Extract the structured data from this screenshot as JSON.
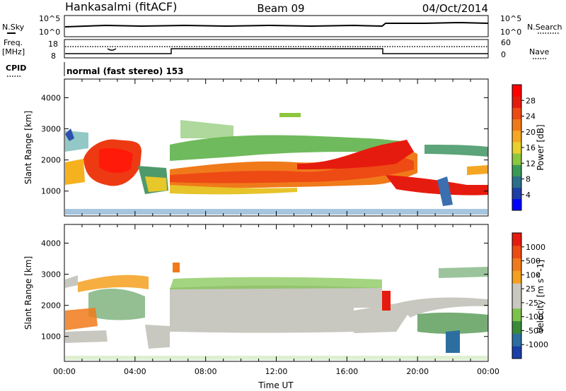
{
  "header": {
    "station": "Hankasalmi (fitACF)",
    "beam": "Beam 09",
    "date": "04/Oct/2014"
  },
  "strip_nsky": {
    "left_label": "N.Sky",
    "left_ticks": [
      "10^5",
      "10^0"
    ],
    "right_label": "N.Search",
    "right_ticks": [
      "10^5",
      "10^0"
    ]
  },
  "strip_freq": {
    "left_label_1": "Freq.",
    "left_label_2": "[MHz]",
    "left_ticks": [
      "18",
      "8"
    ],
    "right_label": "Nave",
    "right_ticks": [
      "60",
      "0"
    ]
  },
  "strip_cpid": {
    "label": "CPID",
    "mode": "normal (fast stereo) 153"
  },
  "colors": {
    "power_scale": [
      "#0000ff",
      "#1f3fa6",
      "#2d6e8a",
      "#3a9a55",
      "#8dc63f",
      "#e6d22a",
      "#f5a623",
      "#f07a1a",
      "#ee4a14",
      "#e61b0f",
      "#ff0000"
    ],
    "velocity_scale": [
      "#1a3fa8",
      "#2d6ea0",
      "#3a8a3a",
      "#7cc24a",
      "#c8c8c0",
      "#c8c8c0",
      "#f5a020",
      "#f07a1a",
      "#ee4a14",
      "#e61b0f"
    ]
  },
  "chart_data": [
    {
      "type": "heatmap",
      "title": "",
      "xlabel": "Time UT",
      "ylabel": "Slant Range [km]",
      "colorbar_label": "Power [dB]",
      "colorbar_ticks": [
        "28",
        "24",
        "20",
        "16",
        "12",
        "8",
        "4"
      ],
      "x_ticks": [
        "00:00",
        "04:00",
        "08:00",
        "12:00",
        "16:00",
        "20:00",
        "00:00"
      ],
      "y_ticks": [
        "4000",
        "3000",
        "2000",
        "1000"
      ],
      "xlim": [
        0,
        24
      ],
      "ylim": [
        200,
        4600
      ],
      "value_range": [
        0,
        32
      ],
      "grid": false
    },
    {
      "type": "heatmap",
      "title": "",
      "xlabel": "Time UT",
      "ylabel": "Slant Range [km]",
      "colorbar_label": "Velocity [m s^-1]",
      "colorbar_ticks": [
        "1000",
        "500",
        "100",
        "25",
        "-25",
        "-100",
        "-500",
        "-1000"
      ],
      "x_ticks": [
        "00:00",
        "04:00",
        "08:00",
        "12:00",
        "16:00",
        "20:00",
        "00:00"
      ],
      "y_ticks": [
        "4000",
        "3000",
        "2000",
        "1000"
      ],
      "xlim": [
        0,
        24
      ],
      "ylim": [
        200,
        4600
      ],
      "grid": false
    }
  ]
}
